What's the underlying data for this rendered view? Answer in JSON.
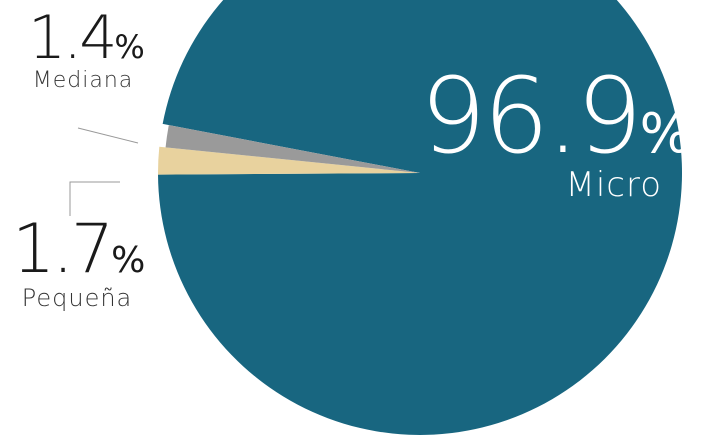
{
  "chart_data": {
    "type": "pie",
    "slices": [
      {
        "label": "Micro",
        "value": 96.9,
        "display_number": "96.9",
        "color": "#186680"
      },
      {
        "label": "Mediana",
        "value": 1.4,
        "display_number": "1.4",
        "color": "#9a9a9a"
      },
      {
        "label": "Pequeña",
        "value": 1.7,
        "display_number": "1.7",
        "color": "#e8d29e"
      }
    ],
    "percent_sign": "%",
    "leader_line_color": "#999999"
  }
}
